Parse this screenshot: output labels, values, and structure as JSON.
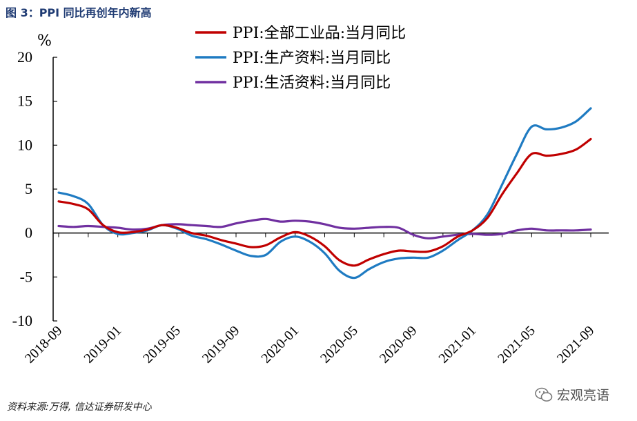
{
  "figure": {
    "title": "图 3：PPI 同比再创年内新高",
    "source": "资料来源:万得, 信达证券研发中心",
    "watermark": "宏观亮语"
  },
  "chart_data": {
    "type": "line",
    "title": "",
    "ylabel": "%",
    "ylim": [
      -10,
      20
    ],
    "yticks": [
      -10,
      -5,
      0,
      5,
      10,
      15,
      20
    ],
    "x_tick_labels": [
      "2018-09",
      "2019-01",
      "2019-05",
      "2019-09",
      "2020-01",
      "2020-05",
      "2020-09",
      "2021-01",
      "2021-05",
      "2021-09"
    ],
    "x_tick_index": [
      0,
      4,
      8,
      12,
      16,
      20,
      24,
      28,
      32,
      36
    ],
    "x": [
      "2018-09",
      "2018-10",
      "2018-11",
      "2018-12",
      "2019-01",
      "2019-02",
      "2019-03",
      "2019-04",
      "2019-05",
      "2019-06",
      "2019-07",
      "2019-08",
      "2019-09",
      "2019-10",
      "2019-11",
      "2019-12",
      "2020-01",
      "2020-02",
      "2020-03",
      "2020-04",
      "2020-05",
      "2020-06",
      "2020-07",
      "2020-08",
      "2020-09",
      "2020-10",
      "2020-11",
      "2020-12",
      "2021-01",
      "2021-02",
      "2021-03",
      "2021-04",
      "2021-05",
      "2021-06",
      "2021-07",
      "2021-08",
      "2021-09"
    ],
    "grid": false,
    "legend_position": "top-right",
    "series": [
      {
        "name": "PPI:全部工业品:当月同比",
        "color": "#c00000",
        "values": [
          3.6,
          3.3,
          2.7,
          0.9,
          0.1,
          0.1,
          0.4,
          0.9,
          0.6,
          0.0,
          -0.3,
          -0.8,
          -1.2,
          -1.6,
          -1.4,
          -0.5,
          0.1,
          -0.4,
          -1.5,
          -3.1,
          -3.7,
          -3.0,
          -2.4,
          -2.0,
          -2.1,
          -2.1,
          -1.5,
          -0.4,
          0.3,
          1.7,
          4.4,
          6.8,
          9.0,
          8.8,
          9.0,
          9.5,
          10.7
        ]
      },
      {
        "name": "PPI:生产资料:当月同比",
        "color": "#1f7bc2",
        "values": [
          4.6,
          4.2,
          3.3,
          0.9,
          -0.1,
          0.0,
          0.3,
          0.9,
          0.5,
          -0.3,
          -0.7,
          -1.3,
          -2.0,
          -2.6,
          -2.5,
          -1.0,
          -0.4,
          -1.0,
          -2.3,
          -4.3,
          -5.1,
          -4.1,
          -3.3,
          -2.9,
          -2.8,
          -2.8,
          -2.0,
          -0.8,
          0.3,
          2.1,
          5.5,
          9.0,
          12.1,
          11.8,
          12.0,
          12.7,
          14.2
        ]
      },
      {
        "name": "PPI:生活资料:当月同比",
        "color": "#7030a0",
        "values": [
          0.8,
          0.7,
          0.8,
          0.7,
          0.6,
          0.4,
          0.5,
          0.9,
          1.0,
          0.9,
          0.8,
          0.7,
          1.1,
          1.4,
          1.6,
          1.3,
          1.4,
          1.3,
          1.0,
          0.6,
          0.5,
          0.6,
          0.7,
          0.6,
          -0.2,
          -0.6,
          -0.4,
          -0.2,
          -0.1,
          -0.2,
          -0.1,
          0.3,
          0.5,
          0.3,
          0.3,
          0.3,
          0.4
        ]
      }
    ]
  }
}
